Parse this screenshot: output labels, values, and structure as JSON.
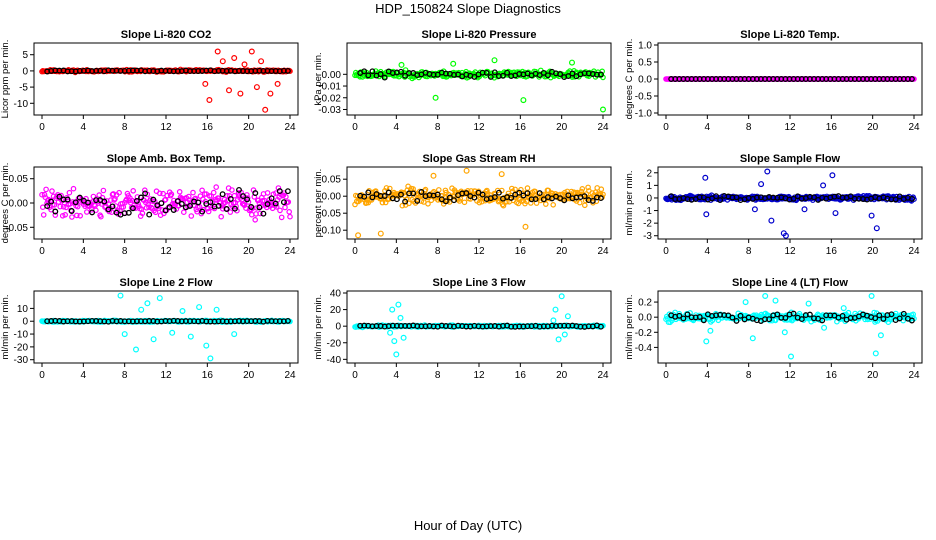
{
  "title": "HDP_150824  Slope Diagnostics",
  "xlabel": "Hour of Day (UTC)",
  "colors": {
    "overlay": "#000000",
    "axis": "#000000"
  },
  "chart_data": [
    {
      "type": "scatter",
      "id": "co2",
      "title": "Slope Li-820 CO2",
      "ylabel": "Licor ppm per min.",
      "color": "#ff0000",
      "xlim": [
        0,
        24
      ],
      "xticks": [
        "0",
        "4",
        "8",
        "12",
        "16",
        "20",
        "24"
      ],
      "ylim": [
        -13,
        8
      ],
      "yticks": [
        {
          "v": 5,
          "label": "5"
        },
        {
          "v": 0,
          "label": "0"
        },
        {
          "v": -5,
          "label": "-5"
        },
        {
          "v": -10,
          "label": "-10"
        }
      ],
      "base_amp": 0.5,
      "overlay_amp": 0.2,
      "seed": 11,
      "outliers": [
        [
          16.2,
          -9
        ],
        [
          17.0,
          6
        ],
        [
          17.5,
          3
        ],
        [
          18.1,
          -6
        ],
        [
          18.6,
          4
        ],
        [
          19.2,
          -7
        ],
        [
          19.6,
          2
        ],
        [
          20.3,
          6
        ],
        [
          20.8,
          -5
        ],
        [
          21.2,
          3
        ],
        [
          21.6,
          -12
        ],
        [
          22.1,
          -7
        ],
        [
          22.8,
          -4
        ],
        [
          15.8,
          -4
        ]
      ]
    },
    {
      "type": "scatter",
      "id": "pressure",
      "title": "Slope Li-820 Pressure",
      "ylabel": "kPa per min.",
      "color": "#00ff00",
      "xlim": [
        0,
        24
      ],
      "xticks": [
        "0",
        "4",
        "8",
        "12",
        "16",
        "20",
        "24"
      ],
      "ylim": [
        -0.033,
        0.025
      ],
      "yticks": [
        {
          "v": 0.0,
          "label": "0.00"
        },
        {
          "v": -0.01,
          "label": "-0.01"
        },
        {
          "v": -0.02,
          "label": "-0.02"
        },
        {
          "v": -0.03,
          "label": "-0.03"
        }
      ],
      "base_amp": 0.004,
      "overlay_amp": 0.003,
      "seed": 23,
      "outliers": [
        [
          7.8,
          -0.02
        ],
        [
          16.3,
          -0.022
        ],
        [
          24.0,
          -0.03
        ],
        [
          13.5,
          0.012
        ],
        [
          21.0,
          0.01
        ],
        [
          9.5,
          0.009
        ],
        [
          4.5,
          0.008
        ]
      ]
    },
    {
      "type": "scatter",
      "id": "temp",
      "title": "Slope Li-820 Temp.",
      "ylabel": "degrees C per min.",
      "color": "#ff00ff",
      "xlim": [
        0,
        24
      ],
      "xticks": [
        "0",
        "4",
        "8",
        "12",
        "16",
        "20",
        "24"
      ],
      "ylim": [
        -1.0,
        1.0
      ],
      "yticks": [
        {
          "v": 1.0,
          "label": "1.0"
        },
        {
          "v": 0.5,
          "label": "0.5"
        },
        {
          "v": 0.0,
          "label": "0.0"
        },
        {
          "v": -0.5,
          "label": "-0.5"
        },
        {
          "v": -1.0,
          "label": "-1.0"
        }
      ],
      "base_amp": 0.0,
      "overlay_amp": 0.0,
      "seed": 31,
      "outliers": []
    },
    {
      "type": "scatter",
      "id": "ambtemp",
      "title": "Slope Amb. Box Temp.",
      "ylabel": "degrees C per min.",
      "color": "#ff00ff",
      "xlim": [
        0,
        24
      ],
      "xticks": [
        "0",
        "4",
        "8",
        "12",
        "16",
        "20",
        "24"
      ],
      "ylim": [
        -0.07,
        0.07
      ],
      "yticks": [
        {
          "v": 0.05,
          "label": "0.05"
        },
        {
          "v": 0.0,
          "label": "0.00"
        },
        {
          "v": -0.05,
          "label": "-0.05"
        }
      ],
      "base_amp": 0.04,
      "overlay_amp": 0.03,
      "seed": 41,
      "outliers": []
    },
    {
      "type": "scatter",
      "id": "rh",
      "title": "Slope Gas Stream RH",
      "ylabel": "percent per min.",
      "color": "#ffa500",
      "xlim": [
        0,
        24
      ],
      "xticks": [
        "0",
        "4",
        "8",
        "12",
        "16",
        "20",
        "24"
      ],
      "ylim": [
        -0.12,
        0.08
      ],
      "yticks": [
        {
          "v": 0.05,
          "label": "0.05"
        },
        {
          "v": 0.0,
          "label": "0.00"
        },
        {
          "v": -0.05,
          "label": "-0.05"
        },
        {
          "v": -0.1,
          "label": "-0.10"
        }
      ],
      "base_amp": 0.035,
      "overlay_amp": 0.02,
      "seed": 53,
      "outliers": [
        [
          0.3,
          -0.115
        ],
        [
          2.5,
          -0.11
        ],
        [
          10.8,
          0.075
        ],
        [
          16.5,
          -0.09
        ],
        [
          7.6,
          0.06
        ],
        [
          14.2,
          0.065
        ]
      ]
    },
    {
      "type": "scatter",
      "id": "sampleflow",
      "title": "Slope Sample Flow",
      "ylabel": "ml/min per min.",
      "color": "#0000cc",
      "xlim": [
        0,
        24
      ],
      "xticks": [
        "0",
        "4",
        "8",
        "12",
        "16",
        "20",
        "24"
      ],
      "ylim": [
        -3.1,
        2.3
      ],
      "yticks": [
        {
          "v": 2,
          "label": "2"
        },
        {
          "v": 1,
          "label": "1"
        },
        {
          "v": 0,
          "label": "0"
        },
        {
          "v": -1,
          "label": "-1"
        },
        {
          "v": -2,
          "label": "-2"
        },
        {
          "v": -3,
          "label": "-3"
        }
      ],
      "base_amp": 0.25,
      "overlay_amp": 0.2,
      "seed": 67,
      "outliers": [
        [
          3.8,
          1.6
        ],
        [
          3.9,
          -1.3
        ],
        [
          9.2,
          1.1
        ],
        [
          9.8,
          2.1
        ],
        [
          10.2,
          -1.8
        ],
        [
          11.4,
          -2.8
        ],
        [
          11.6,
          -3.0
        ],
        [
          15.2,
          1.0
        ],
        [
          16.1,
          1.8
        ],
        [
          16.4,
          -1.2
        ],
        [
          19.9,
          -1.4
        ],
        [
          20.4,
          -2.4
        ],
        [
          8.6,
          -0.9
        ],
        [
          13.4,
          -0.9
        ]
      ]
    },
    {
      "type": "scatter",
      "id": "line2",
      "title": "Slope Line 2 Flow",
      "ylabel": "ml/min per min.",
      "color": "#00ffff",
      "xlim": [
        0,
        24
      ],
      "xticks": [
        "0",
        "4",
        "8",
        "12",
        "16",
        "20",
        "24"
      ],
      "ylim": [
        -31,
        22
      ],
      "yticks": [
        {
          "v": 10,
          "label": "10"
        },
        {
          "v": 0,
          "label": "0"
        },
        {
          "v": -10,
          "label": "-10"
        },
        {
          "v": -20,
          "label": "-20"
        },
        {
          "v": -30,
          "label": "-30"
        }
      ],
      "base_amp": 1.0,
      "overlay_amp": 0.5,
      "seed": 79,
      "outliers": [
        [
          7.6,
          20
        ],
        [
          8.0,
          -10
        ],
        [
          9.1,
          -22
        ],
        [
          9.6,
          9
        ],
        [
          10.2,
          14
        ],
        [
          10.8,
          -14
        ],
        [
          11.4,
          18
        ],
        [
          12.6,
          -9
        ],
        [
          13.6,
          8
        ],
        [
          14.4,
          -12
        ],
        [
          15.2,
          11
        ],
        [
          15.9,
          -19
        ],
        [
          16.3,
          -29
        ],
        [
          16.9,
          9
        ],
        [
          18.6,
          -10
        ]
      ]
    },
    {
      "type": "scatter",
      "id": "line3",
      "title": "Slope Line 3 Flow",
      "ylabel": "ml/min per min.",
      "color": "#00ffff",
      "xlim": [
        0,
        24
      ],
      "xticks": [
        "0",
        "4",
        "8",
        "12",
        "16",
        "20",
        "24"
      ],
      "ylim": [
        -42,
        40
      ],
      "yticks": [
        {
          "v": 40,
          "label": "40"
        },
        {
          "v": 20,
          "label": "20"
        },
        {
          "v": 0,
          "label": "0"
        },
        {
          "v": -20,
          "label": "-20"
        },
        {
          "v": -40,
          "label": "-40"
        }
      ],
      "base_amp": 1.5,
      "overlay_amp": 1.0,
      "seed": 97,
      "outliers": [
        [
          3.6,
          20
        ],
        [
          3.8,
          -18
        ],
        [
          4.0,
          -34
        ],
        [
          4.2,
          26
        ],
        [
          4.4,
          10
        ],
        [
          3.4,
          -8
        ],
        [
          4.7,
          -14
        ],
        [
          19.4,
          20
        ],
        [
          19.7,
          -16
        ],
        [
          20.0,
          36
        ],
        [
          20.3,
          -10
        ],
        [
          19.2,
          7
        ],
        [
          20.6,
          12
        ]
      ]
    },
    {
      "type": "scatter",
      "id": "line4",
      "title": "Slope Line 4 (LT) Flow",
      "ylabel": "ml/min per min.",
      "color": "#00ffff",
      "xlim": [
        0,
        24
      ],
      "xticks": [
        "0",
        "4",
        "8",
        "12",
        "16",
        "20",
        "24"
      ],
      "ylim": [
        -0.58,
        0.32
      ],
      "yticks": [
        {
          "v": 0.2,
          "label": "0.2"
        },
        {
          "v": 0.0,
          "label": "0.0"
        },
        {
          "v": -0.2,
          "label": "-0.2"
        },
        {
          "v": -0.4,
          "label": "-0.4"
        }
      ],
      "base_amp": 0.08,
      "overlay_amp": 0.06,
      "seed": 113,
      "outliers": [
        [
          3.9,
          -0.32
        ],
        [
          4.3,
          -0.18
        ],
        [
          7.7,
          0.2
        ],
        [
          8.4,
          -0.28
        ],
        [
          9.6,
          0.28
        ],
        [
          10.6,
          0.22
        ],
        [
          11.5,
          -0.2
        ],
        [
          12.1,
          -0.52
        ],
        [
          13.8,
          0.18
        ],
        [
          15.3,
          -0.14
        ],
        [
          19.9,
          0.28
        ],
        [
          20.3,
          -0.48
        ],
        [
          20.8,
          -0.24
        ],
        [
          17.2,
          0.12
        ]
      ]
    }
  ]
}
